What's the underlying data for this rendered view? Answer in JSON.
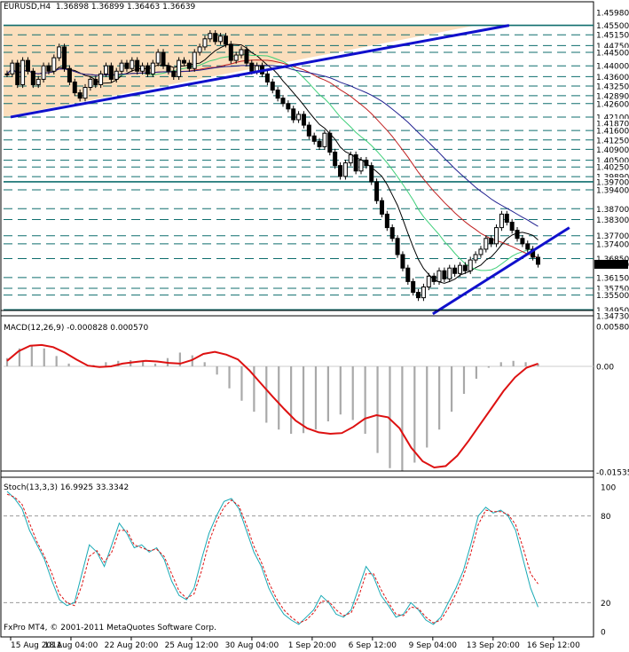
{
  "window": {
    "symbol_header": "EURUSD,H4  1.36898 1.36899 1.36463 1.36639",
    "macd_header": "MACD(12,26,9) -0.000828 0.000570",
    "stoch_header": "Stoch(13,3,3) 16.9925 33.3342",
    "footer": "FxPro MT4, © 2001-2011 MetaQuotes Software Corp."
  },
  "colors": {
    "candle": "#000000",
    "trendline": "#1010cc",
    "shade": "#fad8b0",
    "level_line": "#0f6e6e",
    "ma_fast": "#000000",
    "ma_green": "#3fcf7a",
    "ma_red": "#c02020",
    "ma_blue": "#202090",
    "macd_signal": "#dd1111",
    "macd_hist": "#a9a9a9",
    "stoch_main": "#18a9b5",
    "stoch_signal": "#dd1111"
  },
  "chart_data": [
    {
      "type": "candlestick",
      "title": "EURUSD,H4",
      "ylim": [
        1.3473,
        1.4598
      ],
      "y_ticks": [
        "1.45980",
        "1.45500",
        "1.45150",
        "1.44750",
        "1.44500",
        "1.44000",
        "1.43600",
        "1.43250",
        "1.42890",
        "1.42600",
        "1.42100",
        "1.41870",
        "1.41600",
        "1.41250",
        "1.40900",
        "1.40500",
        "1.40250",
        "1.39890",
        "1.39700",
        "1.39400",
        "1.38700",
        "1.38300",
        "1.37700",
        "1.37400",
        "1.36850",
        "1.36639",
        "1.36150",
        "1.35750",
        "1.35500",
        "1.34950",
        "1.34730"
      ],
      "horizontal_levels": [
        1.455,
        1.4515,
        1.4475,
        1.445,
        1.44,
        1.436,
        1.4325,
        1.4289,
        1.426,
        1.421,
        1.416,
        1.4125,
        1.409,
        1.405,
        1.4025,
        1.3989,
        1.397,
        1.394,
        1.387,
        1.383,
        1.377,
        1.374,
        1.3685,
        1.3615,
        1.3575,
        1.355,
        1.3495
      ],
      "last_price": 1.36639,
      "x_ticks": [
        "15 Aug 2011",
        "18 Aug 04:00",
        "22 Aug 20:00",
        "25 Aug 12:00",
        "30 Aug 04:00",
        "1 Sep 20:00",
        "6 Sep 12:00",
        "9 Sep 04:00",
        "13 Sep 20:00",
        "16 Sep 12:00"
      ],
      "close_path": [
        1.437,
        1.441,
        1.433,
        1.442,
        1.438,
        1.433,
        1.435,
        1.44,
        1.438,
        1.443,
        1.447,
        1.439,
        1.434,
        1.43,
        1.428,
        1.432,
        1.435,
        1.433,
        1.437,
        1.44,
        1.435,
        1.438,
        1.441,
        1.439,
        1.442,
        1.438,
        1.44,
        1.437,
        1.441,
        1.445,
        1.44,
        1.438,
        1.436,
        1.442,
        1.441,
        1.439,
        1.445,
        1.447,
        1.45,
        1.452,
        1.449,
        1.451,
        1.448,
        1.442,
        1.444,
        1.446,
        1.441,
        1.438,
        1.44,
        1.437,
        1.434,
        1.431,
        1.428,
        1.426,
        1.424,
        1.42,
        1.422,
        1.418,
        1.414,
        1.412,
        1.41,
        1.415,
        1.408,
        1.403,
        1.399,
        1.404,
        1.407,
        1.401,
        1.405,
        1.403,
        1.397,
        1.39,
        1.385,
        1.38,
        1.376,
        1.37,
        1.365,
        1.36,
        1.356,
        1.354,
        1.358,
        1.362,
        1.36,
        1.364,
        1.361,
        1.365,
        1.363,
        1.366,
        1.364,
        1.368,
        1.37,
        1.372,
        1.376,
        1.374,
        1.38,
        1.385,
        1.382,
        1.379,
        1.376,
        1.374,
        1.372,
        1.369,
        1.3664
      ],
      "trendlines": [
        {
          "from": [
            "15 Aug 2011",
            1.421
          ],
          "to": [
            "13 Sep 20:00",
            1.455
          ]
        },
        {
          "from": [
            "9 Sep 04:00",
            1.348
          ],
          "to": [
            "16 Sep 12:00",
            1.38
          ]
        }
      ]
    },
    {
      "type": "line",
      "title": "MACD(12,26,9)",
      "values_text": "-0.000828 0.000570",
      "ylim": [
        -0.01535,
        0.0058
      ],
      "y_ticks": [
        "0.00580",
        "0.00",
        "-0.01535"
      ],
      "signal_path": [
        0.0008,
        0.0022,
        0.003,
        0.0031,
        0.0028,
        0.002,
        0.001,
        0.0001,
        -0.0001,
        0.0,
        0.0004,
        0.0006,
        0.0008,
        0.0007,
        0.0005,
        0.0004,
        0.0009,
        0.0018,
        0.0021,
        0.0017,
        0.001,
        -0.0006,
        -0.0025,
        -0.0044,
        -0.0062,
        -0.0079,
        -0.009,
        -0.0096,
        -0.0098,
        -0.0097,
        -0.0088,
        -0.0076,
        -0.0071,
        -0.0074,
        -0.009,
        -0.0118,
        -0.0138,
        -0.0147,
        -0.0145,
        -0.013,
        -0.0108,
        -0.0084,
        -0.006,
        -0.0036,
        -0.0016,
        -0.0002,
        0.0004
      ],
      "hist_path": [
        0.0012,
        0.0026,
        0.003,
        0.0026,
        0.0015,
        0.0004,
        0.0,
        0.0002,
        0.0006,
        0.0008,
        0.0009,
        0.0007,
        0.0004,
        0.0012,
        0.002,
        0.0016,
        0.0006,
        -0.0012,
        -0.0032,
        -0.005,
        -0.0066,
        -0.0082,
        -0.0092,
        -0.0098,
        -0.0097,
        -0.0092,
        -0.008,
        -0.007,
        -0.0078,
        -0.0098,
        -0.0126,
        -0.0148,
        -0.0152,
        -0.014,
        -0.0118,
        -0.0092,
        -0.0066,
        -0.004,
        -0.0018,
        -0.0002,
        0.0006,
        0.0008,
        0.0006,
        0.0004
      ]
    },
    {
      "type": "line",
      "title": "Stoch(13,3,3)",
      "values_text": "16.9925 33.3342",
      "ylim": [
        0,
        100
      ],
      "y_ticks": [
        "100",
        "80",
        "20",
        "0"
      ],
      "levels": [
        80,
        20
      ],
      "main_path": [
        97,
        92,
        85,
        70,
        60,
        50,
        35,
        22,
        18,
        20,
        40,
        60,
        55,
        45,
        60,
        75,
        68,
        58,
        60,
        55,
        58,
        50,
        35,
        25,
        22,
        30,
        50,
        68,
        80,
        90,
        92,
        85,
        70,
        55,
        45,
        30,
        20,
        12,
        8,
        5,
        10,
        15,
        25,
        20,
        12,
        10,
        15,
        30,
        45,
        38,
        25,
        18,
        10,
        12,
        20,
        15,
        8,
        5,
        10,
        20,
        30,
        42,
        60,
        80,
        86,
        82,
        84,
        80,
        70,
        50,
        30,
        17
      ],
      "signal_path": [
        95,
        93,
        88,
        75,
        62,
        52,
        40,
        26,
        20,
        18,
        32,
        52,
        56,
        48,
        55,
        70,
        70,
        60,
        58,
        56,
        57,
        52,
        40,
        28,
        23,
        26,
        42,
        62,
        76,
        86,
        91,
        87,
        74,
        59,
        48,
        34,
        23,
        15,
        10,
        6,
        8,
        13,
        21,
        21,
        15,
        11,
        13,
        24,
        40,
        40,
        29,
        20,
        12,
        11,
        17,
        16,
        10,
        6,
        8,
        16,
        26,
        38,
        54,
        74,
        84,
        83,
        83,
        81,
        74,
        58,
        40,
        33
      ]
    }
  ]
}
